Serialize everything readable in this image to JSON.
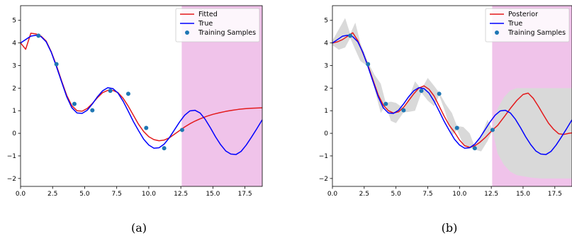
{
  "chart_data": [
    {
      "type": "line",
      "caption": "(a)",
      "xlim": [
        0,
        18.85
      ],
      "ylim": [
        -2.35,
        5.65
      ],
      "xticks": [
        "0.0",
        "2.5",
        "5.0",
        "7.5",
        "10.0",
        "12.5",
        "15.0",
        "17.5"
      ],
      "xtick_values": [
        0,
        2.5,
        5,
        7.5,
        10,
        12.5,
        15,
        17.5
      ],
      "yticks": [
        "−2",
        "−1",
        "0",
        "1",
        "2",
        "3",
        "4",
        "5"
      ],
      "ytick_values": [
        -2,
        -1,
        0,
        1,
        2,
        3,
        4,
        5
      ],
      "shaded_region": {
        "x": [
          12.57,
          18.85
        ],
        "color": "#f0c3ea"
      },
      "legend": {
        "placement": "top-right",
        "entries": [
          "Fitted",
          "True",
          "Training Samples"
        ]
      },
      "series": [
        {
          "name": "Fitted",
          "kind": "line",
          "color": "#e31a1c",
          "x": [
            0,
            0.4,
            0.8,
            1.2,
            1.6,
            2.0,
            2.4,
            2.8,
            3.2,
            3.6,
            4.0,
            4.4,
            4.8,
            5.2,
            5.6,
            6.0,
            6.4,
            6.8,
            7.2,
            7.6,
            8.0,
            8.4,
            8.8,
            9.2,
            9.6,
            10.0,
            10.4,
            10.8,
            11.2,
            11.6,
            12.0,
            12.4,
            12.8,
            13.2,
            13.6,
            14.0,
            14.5,
            15.0,
            15.5,
            16.0,
            16.5,
            17.0,
            17.5,
            18.0,
            18.5,
            18.85
          ],
          "values": [
            4.0,
            3.72,
            4.43,
            4.4,
            4.3,
            4.08,
            3.6,
            3.0,
            2.32,
            1.68,
            1.22,
            1.0,
            0.98,
            1.1,
            1.32,
            1.58,
            1.8,
            1.9,
            1.9,
            1.8,
            1.55,
            1.2,
            0.8,
            0.4,
            0.08,
            -0.15,
            -0.28,
            -0.33,
            -0.3,
            -0.2,
            -0.04,
            0.12,
            0.28,
            0.42,
            0.54,
            0.64,
            0.75,
            0.84,
            0.91,
            0.97,
            1.02,
            1.06,
            1.09,
            1.11,
            1.12,
            1.13
          ]
        },
        {
          "name": "True",
          "kind": "line",
          "color": "#0000ff",
          "x": [
            0,
            0.4,
            0.8,
            1.2,
            1.6,
            2.0,
            2.4,
            2.8,
            3.2,
            3.6,
            4.0,
            4.4,
            4.8,
            5.2,
            5.6,
            6.0,
            6.4,
            6.8,
            7.2,
            7.6,
            8.0,
            8.4,
            8.8,
            9.2,
            9.6,
            10.0,
            10.4,
            10.8,
            11.2,
            11.6,
            12.0,
            12.4,
            12.8,
            13.2,
            13.6,
            14.0,
            14.4,
            14.8,
            15.2,
            15.6,
            16.0,
            16.4,
            16.8,
            17.2,
            17.6,
            18.0,
            18.4,
            18.85
          ],
          "values": [
            4.0,
            4.15,
            4.3,
            4.34,
            4.28,
            4.05,
            3.58,
            2.95,
            2.28,
            1.62,
            1.13,
            0.9,
            0.88,
            1.02,
            1.3,
            1.62,
            1.88,
            2.02,
            1.98,
            1.78,
            1.42,
            0.98,
            0.52,
            0.12,
            -0.26,
            -0.52,
            -0.66,
            -0.64,
            -0.48,
            -0.2,
            0.15,
            0.5,
            0.8,
            0.99,
            1.02,
            0.9,
            0.62,
            0.25,
            -0.15,
            -0.5,
            -0.78,
            -0.92,
            -0.94,
            -0.8,
            -0.52,
            -0.18,
            0.18,
            0.6
          ]
        },
        {
          "name": "Training Samples",
          "kind": "scatter",
          "color": "#1f77b4",
          "x": [
            1.4,
            2.8,
            4.2,
            5.6,
            7.0,
            8.4,
            9.8,
            11.2,
            12.6
          ],
          "values": [
            4.32,
            3.06,
            1.3,
            1.02,
            1.88,
            1.75,
            0.24,
            -0.66,
            0.15
          ]
        }
      ]
    },
    {
      "type": "line",
      "caption": "(b)",
      "xlim": [
        0,
        18.85
      ],
      "ylim": [
        -2.35,
        5.65
      ],
      "xticks": [
        "0.0",
        "2.5",
        "5.0",
        "7.5",
        "10.0",
        "12.5",
        "15.0",
        "17.5"
      ],
      "xtick_values": [
        0,
        2.5,
        5,
        7.5,
        10,
        12.5,
        15,
        17.5
      ],
      "yticks": [
        "−2",
        "−1",
        "0",
        "1",
        "2",
        "3",
        "4",
        "5"
      ],
      "ytick_values": [
        -2,
        -1,
        0,
        1,
        2,
        3,
        4,
        5
      ],
      "shaded_region": {
        "x": [
          12.57,
          18.85
        ],
        "color": "#f0c3ea"
      },
      "legend": {
        "placement": "top-right",
        "entries": [
          "Posterior",
          "True",
          "Training Samples"
        ]
      },
      "band": {
        "color": "#d9d9d9",
        "x": [
          0,
          0.5,
          1.0,
          1.4,
          1.8,
          2.2,
          2.8,
          3.3,
          3.8,
          4.2,
          4.6,
          5.0,
          5.6,
          6.0,
          6.5,
          7.0,
          7.5,
          8.0,
          8.4,
          8.9,
          9.4,
          9.8,
          10.3,
          10.8,
          11.2,
          11.7,
          12.2,
          12.6,
          13.0,
          13.5,
          14.0,
          14.5,
          15.0,
          15.5,
          16.0,
          16.5,
          17.0,
          17.5,
          18.0,
          18.5,
          18.85
        ],
        "upper": [
          4.1,
          4.6,
          5.1,
          4.4,
          4.9,
          4.0,
          3.15,
          2.6,
          2.2,
          1.35,
          1.4,
          1.35,
          1.1,
          1.55,
          2.3,
          1.95,
          2.45,
          2.1,
          1.8,
          1.3,
          0.9,
          0.32,
          0.28,
          0.0,
          -0.6,
          -0.1,
          0.6,
          0.17,
          1.1,
          1.6,
          1.9,
          2.0,
          2.0,
          2.0,
          2.0,
          2.0,
          2.0,
          2.0,
          2.0,
          2.0,
          2.0
        ],
        "lower": [
          3.9,
          3.7,
          3.8,
          4.22,
          3.7,
          3.2,
          2.96,
          2.0,
          0.9,
          1.25,
          0.55,
          0.45,
          0.93,
          0.95,
          1.0,
          1.8,
          1.45,
          1.2,
          1.68,
          0.9,
          -0.1,
          0.15,
          -0.5,
          -0.65,
          -0.72,
          -0.8,
          -0.35,
          0.13,
          -0.9,
          -1.4,
          -1.7,
          -1.85,
          -1.9,
          -1.95,
          -1.98,
          -2.0,
          -2.0,
          -2.0,
          -2.0,
          -2.0,
          -2.0
        ]
      },
      "series": [
        {
          "name": "Posterior",
          "kind": "line",
          "color": "#e31a1c",
          "x": [
            0,
            0.4,
            0.8,
            1.2,
            1.6,
            2.0,
            2.4,
            2.8,
            3.2,
            3.6,
            4.0,
            4.4,
            4.8,
            5.2,
            5.6,
            6.0,
            6.4,
            6.8,
            7.2,
            7.6,
            8.0,
            8.4,
            8.8,
            9.2,
            9.6,
            10.0,
            10.4,
            10.8,
            11.2,
            11.6,
            12.0,
            12.6,
            13.0,
            13.5,
            14.0,
            14.5,
            15.0,
            15.4,
            15.8,
            16.2,
            16.6,
            17.0,
            17.4,
            17.8,
            18.2,
            18.6,
            18.85
          ],
          "values": [
            4.0,
            4.05,
            4.15,
            4.3,
            4.45,
            4.1,
            3.55,
            3.0,
            2.35,
            1.7,
            1.25,
            1.0,
            0.9,
            0.95,
            1.15,
            1.45,
            1.75,
            2.0,
            2.1,
            1.95,
            1.65,
            1.2,
            0.75,
            0.35,
            0.05,
            -0.3,
            -0.55,
            -0.62,
            -0.55,
            -0.4,
            -0.2,
            0.15,
            0.35,
            0.72,
            1.1,
            1.45,
            1.72,
            1.78,
            1.55,
            1.2,
            0.82,
            0.45,
            0.18,
            -0.02,
            -0.05,
            0.0,
            0.02
          ]
        },
        {
          "name": "True",
          "kind": "line",
          "color": "#0000ff",
          "x": [
            0,
            0.4,
            0.8,
            1.2,
            1.6,
            2.0,
            2.4,
            2.8,
            3.2,
            3.6,
            4.0,
            4.4,
            4.8,
            5.2,
            5.6,
            6.0,
            6.4,
            6.8,
            7.2,
            7.6,
            8.0,
            8.4,
            8.8,
            9.2,
            9.6,
            10.0,
            10.4,
            10.8,
            11.2,
            11.6,
            12.0,
            12.4,
            12.8,
            13.2,
            13.6,
            14.0,
            14.4,
            14.8,
            15.2,
            15.6,
            16.0,
            16.4,
            16.8,
            17.2,
            17.6,
            18.0,
            18.4,
            18.85
          ],
          "values": [
            4.0,
            4.15,
            4.3,
            4.34,
            4.28,
            4.05,
            3.58,
            2.95,
            2.28,
            1.62,
            1.13,
            0.9,
            0.88,
            1.02,
            1.3,
            1.62,
            1.88,
            2.02,
            1.98,
            1.78,
            1.42,
            0.98,
            0.52,
            0.12,
            -0.26,
            -0.52,
            -0.66,
            -0.64,
            -0.48,
            -0.2,
            0.15,
            0.5,
            0.8,
            0.99,
            1.02,
            0.9,
            0.62,
            0.25,
            -0.15,
            -0.5,
            -0.78,
            -0.92,
            -0.94,
            -0.8,
            -0.52,
            -0.18,
            0.18,
            0.6
          ]
        },
        {
          "name": "Training Samples",
          "kind": "scatter",
          "color": "#1f77b4",
          "x": [
            1.4,
            2.8,
            4.2,
            5.6,
            7.0,
            8.4,
            9.8,
            11.2,
            12.6
          ],
          "values": [
            4.32,
            3.06,
            1.3,
            1.02,
            1.88,
            1.75,
            0.24,
            -0.66,
            0.15
          ]
        }
      ]
    }
  ]
}
